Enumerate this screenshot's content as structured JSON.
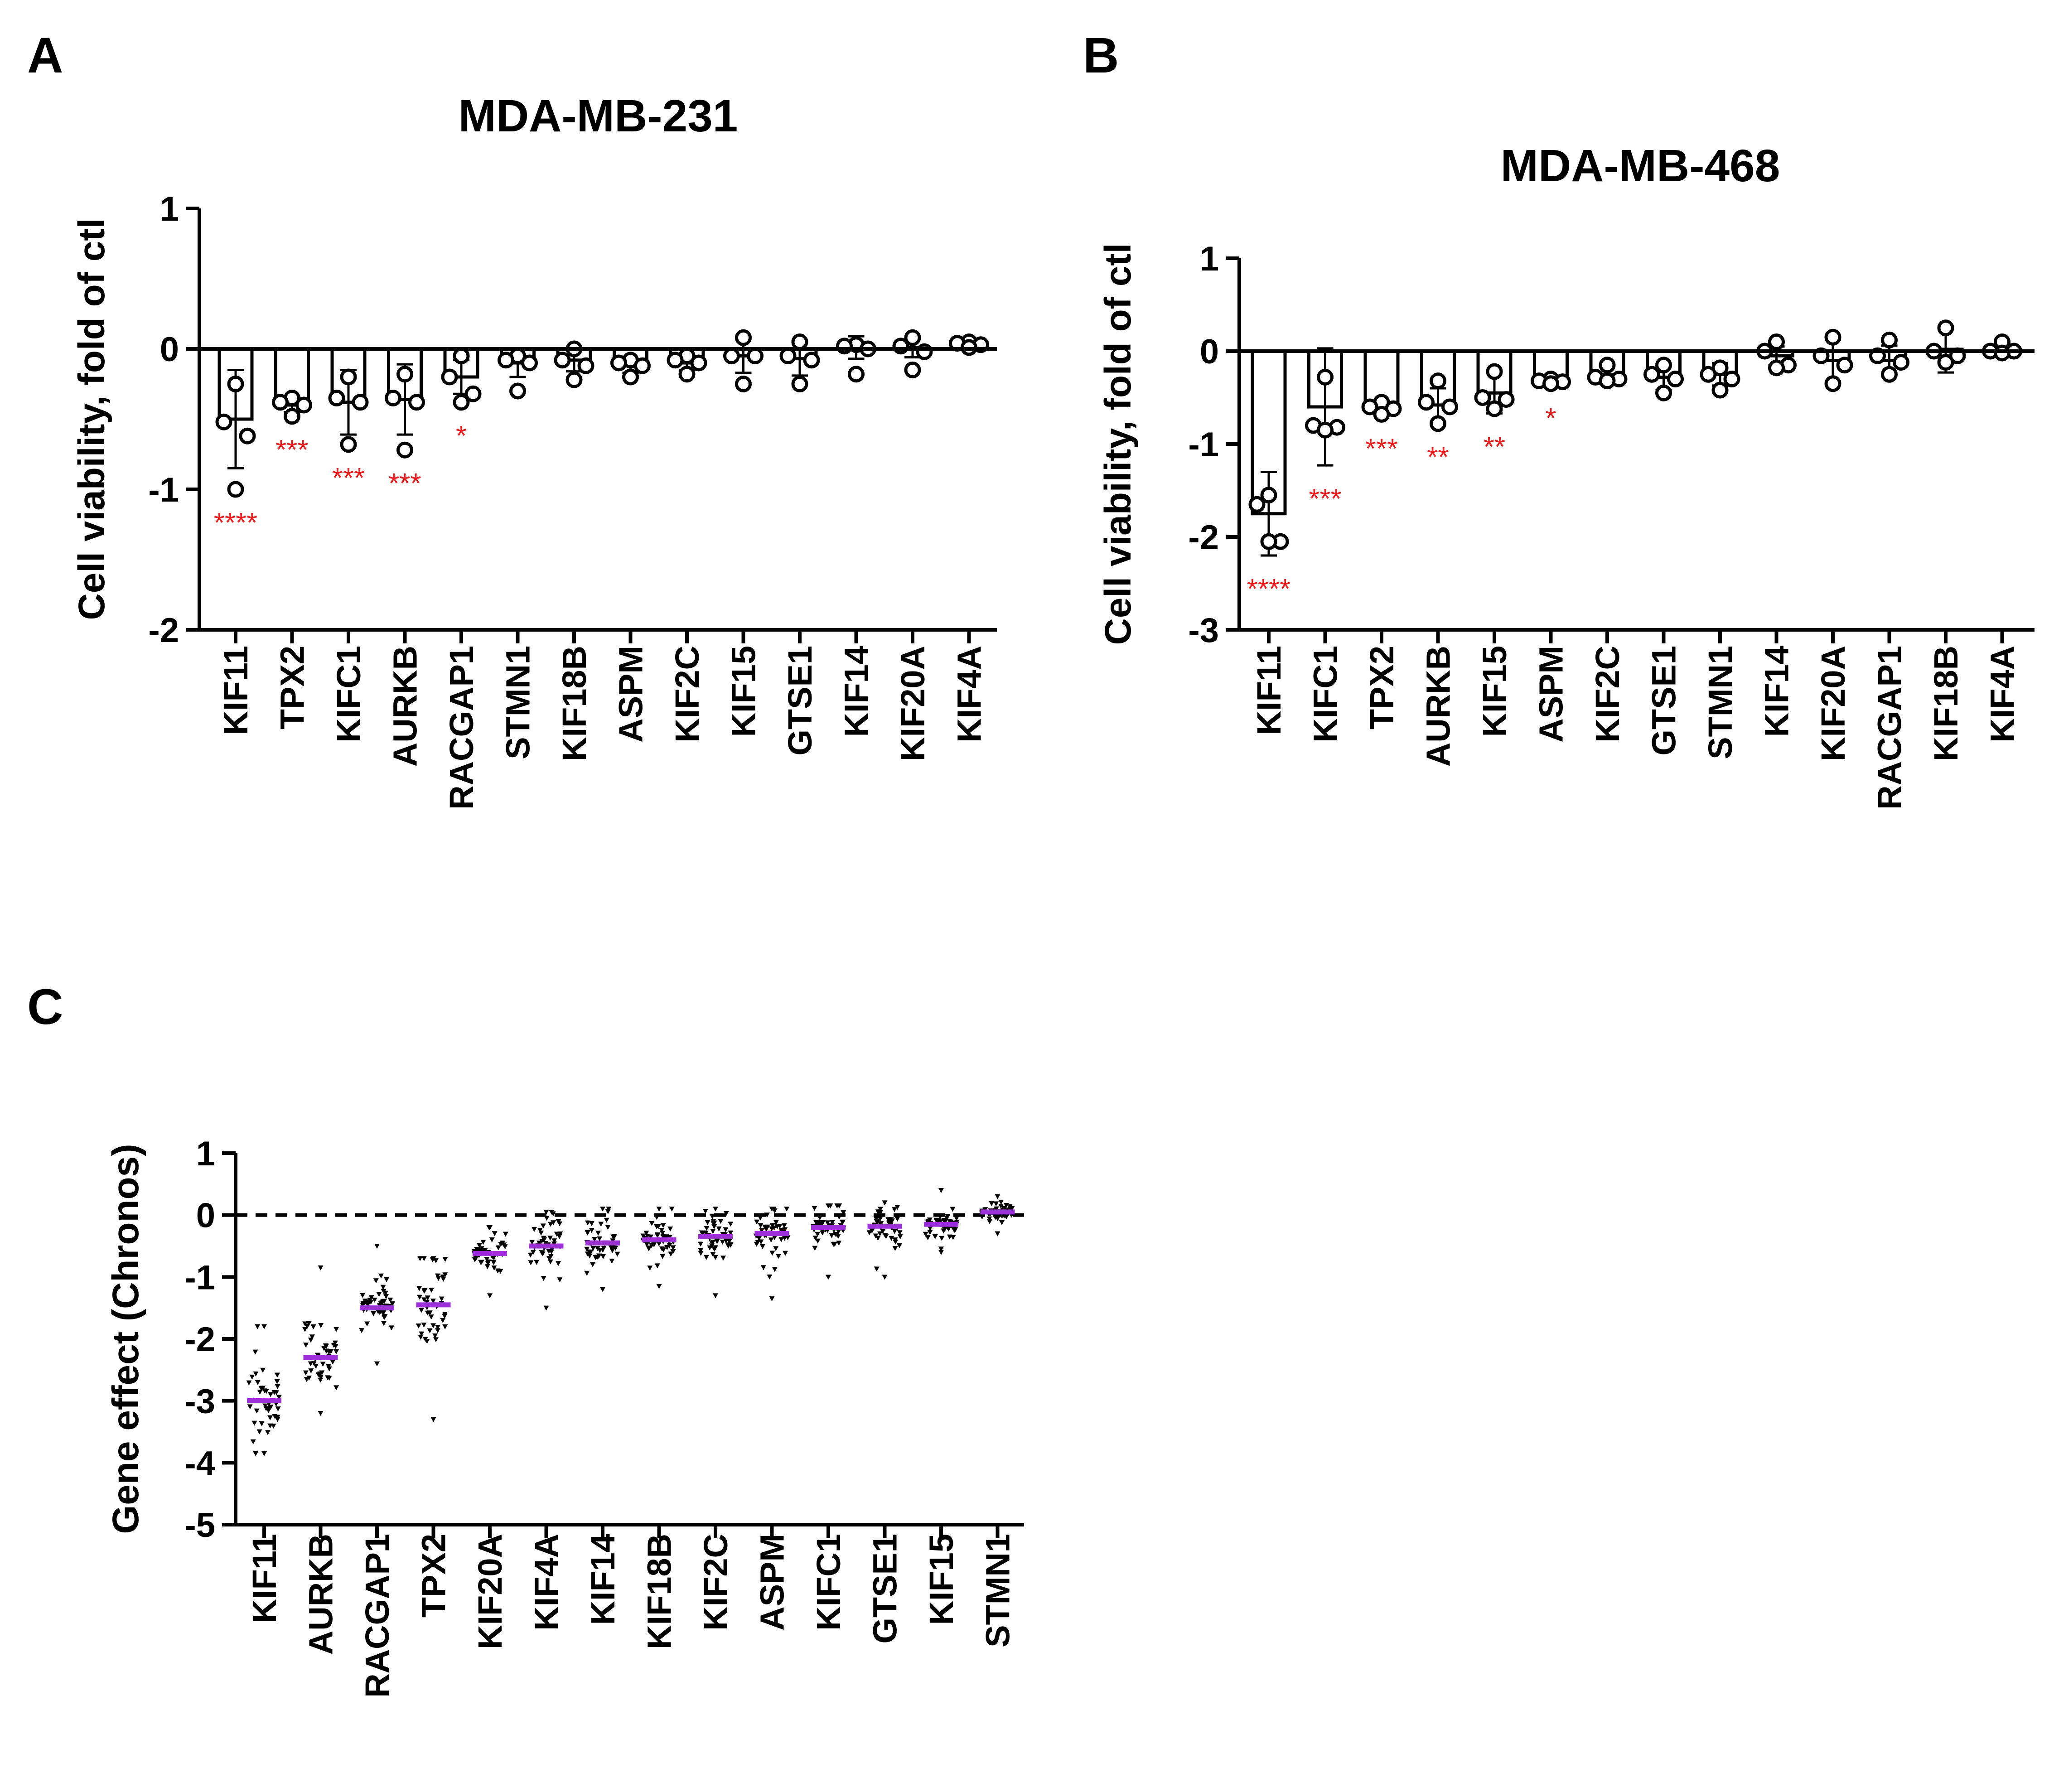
{
  "colors": {
    "axis": "#000000",
    "significance": "#ee1c1c",
    "median": "#9b30d9",
    "bar_fill": "#ffffff",
    "point": "#000000"
  },
  "chart_data": [
    {
      "panel": "A",
      "type": "bar",
      "title": "MDA-MB-231",
      "ylabel": "Cell viability, fold of ctl",
      "xlabel": "",
      "ylim": [
        -2,
        1
      ],
      "yticks": [
        1,
        0,
        -1,
        -2
      ],
      "categories": [
        "KIF11",
        "TPX2",
        "KIFC1",
        "AURKB",
        "RACGAP1",
        "STMN1",
        "KIF18B",
        "ASPM",
        "KIF2C",
        "KIF15",
        "GTSE1",
        "KIF14",
        "KIF20A",
        "KIF4A"
      ],
      "series": [
        {
          "name": "mean",
          "values": [
            -0.5,
            -0.4,
            -0.38,
            -0.36,
            -0.2,
            -0.1,
            -0.08,
            -0.12,
            -0.1,
            -0.05,
            -0.07,
            0.01,
            0.01,
            0.03
          ],
          "error": [
            0.35,
            0.05,
            0.23,
            0.25,
            0.12,
            0.1,
            0.08,
            0.05,
            0.05,
            0.12,
            0.12,
            0.08,
            0.07,
            0.02
          ],
          "points": [
            [
              -0.25,
              -0.52,
              -0.62,
              -1.0
            ],
            [
              -0.35,
              -0.38,
              -0.4,
              -0.48
            ],
            [
              -0.2,
              -0.35,
              -0.38,
              -0.68
            ],
            [
              -0.18,
              -0.35,
              -0.38,
              -0.72
            ],
            [
              -0.05,
              -0.2,
              -0.32,
              -0.38
            ],
            [
              -0.05,
              -0.08,
              -0.1,
              -0.3
            ],
            [
              0.0,
              -0.08,
              -0.12,
              -0.22
            ],
            [
              -0.08,
              -0.1,
              -0.12,
              -0.2
            ],
            [
              -0.05,
              -0.08,
              -0.1,
              -0.18
            ],
            [
              0.08,
              -0.05,
              -0.05,
              -0.25
            ],
            [
              0.05,
              -0.05,
              -0.08,
              -0.25
            ],
            [
              0.03,
              0.02,
              0.0,
              -0.18
            ],
            [
              0.08,
              0.02,
              -0.02,
              -0.15
            ],
            [
              0.05,
              0.04,
              0.03,
              0.01
            ]
          ]
        }
      ],
      "significance": [
        "****",
        "***",
        "***",
        "***",
        "*",
        "",
        "",
        "",
        "",
        "",
        "",
        "",
        "",
        ""
      ]
    },
    {
      "panel": "B",
      "type": "bar",
      "title": "MDA-MB-468",
      "ylabel": "Cell viability, fold of ctl",
      "xlabel": "",
      "ylim": [
        -3,
        1
      ],
      "yticks": [
        1,
        0,
        -1,
        -2,
        -3
      ],
      "categories": [
        "KIF11",
        "KIFC1",
        "TPX2",
        "AURKB",
        "KIF15",
        "ASPM",
        "KIF2C",
        "GTSE1",
        "STMN1",
        "KIF14",
        "KIF20A",
        "RACGAP1",
        "KIF18B",
        "KIF4A"
      ],
      "series": [
        {
          "name": "mean",
          "values": [
            -1.75,
            -0.6,
            -0.62,
            -0.58,
            -0.45,
            -0.33,
            -0.3,
            -0.28,
            -0.25,
            -0.05,
            -0.1,
            -0.1,
            0.02,
            0.01
          ],
          "error": [
            0.45,
            0.63,
            0.07,
            0.18,
            0.22,
            0.03,
            0.05,
            0.14,
            0.12,
            0.1,
            0.22,
            0.16,
            0.25,
            0.06
          ],
          "points": [
            [
              -1.55,
              -1.65,
              -2.05,
              -2.05
            ],
            [
              -0.28,
              -0.8,
              -0.82,
              -0.85
            ],
            [
              -0.55,
              -0.6,
              -0.62,
              -0.68
            ],
            [
              -0.32,
              -0.55,
              -0.6,
              -0.78
            ],
            [
              -0.22,
              -0.5,
              -0.52,
              -0.62
            ],
            [
              -0.3,
              -0.32,
              -0.33,
              -0.35
            ],
            [
              -0.15,
              -0.28,
              -0.3,
              -0.32
            ],
            [
              -0.15,
              -0.25,
              -0.3,
              -0.45
            ],
            [
              -0.18,
              -0.25,
              -0.3,
              -0.42
            ],
            [
              0.1,
              0.0,
              -0.15,
              -0.18
            ],
            [
              0.15,
              -0.05,
              -0.15,
              -0.35
            ],
            [
              0.12,
              -0.05,
              -0.12,
              -0.25
            ],
            [
              0.25,
              0.0,
              -0.05,
              -0.12
            ],
            [
              0.1,
              0.0,
              0.0,
              -0.02
            ]
          ]
        }
      ],
      "significance": [
        "****",
        "***",
        "***",
        "**",
        "**",
        "*",
        "",
        "",
        "",
        "",
        "",
        "",
        "",
        ""
      ]
    },
    {
      "panel": "C",
      "type": "scatter",
      "title": "",
      "ylabel": "Gene effect (Chronos)",
      "xlabel": "",
      "ylim": [
        -5,
        1
      ],
      "yticks": [
        1,
        0,
        -1,
        -2,
        -3,
        -4,
        -5
      ],
      "reference_line": 0,
      "categories": [
        "KIF11",
        "AURKB",
        "RACGAP1",
        "TPX2",
        "KIF20A",
        "KIF4A",
        "KIF14",
        "KIF18B",
        "KIF2C",
        "ASPM",
        "KIFC1",
        "GTSE1",
        "KIF15",
        "STMN1"
      ],
      "medians": [
        -3.0,
        -2.3,
        -1.5,
        -1.45,
        -0.62,
        -0.5,
        -0.45,
        -0.4,
        -0.35,
        -0.3,
        -0.2,
        -0.18,
        -0.15,
        0.05
      ],
      "ranges": [
        [
          -3.85,
          -1.8
        ],
        [
          -3.2,
          -0.85
        ],
        [
          -2.4,
          -0.5
        ],
        [
          -3.3,
          -0.7
        ],
        [
          -1.3,
          -0.2
        ],
        [
          -1.5,
          0.05
        ],
        [
          -1.2,
          0.1
        ],
        [
          -1.15,
          0.1
        ],
        [
          -1.3,
          0.1
        ],
        [
          -1.35,
          0.1
        ],
        [
          -1.0,
          0.15
        ],
        [
          -1.0,
          0.2
        ],
        [
          -0.6,
          0.4
        ],
        [
          -0.3,
          0.3
        ]
      ],
      "spreads": [
        0.35,
        0.3,
        0.25,
        0.4,
        0.18,
        0.22,
        0.18,
        0.2,
        0.2,
        0.25,
        0.18,
        0.17,
        0.12,
        0.08
      ],
      "points_per_gene": 45
    }
  ]
}
